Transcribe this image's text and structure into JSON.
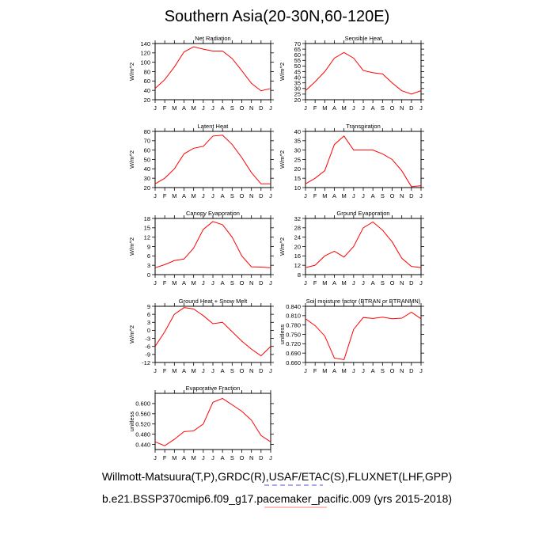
{
  "page": {
    "title": "Southern Asia(20-30N,60-120E)",
    "footer_line1": "Willmott-Matsuura(T,P),GRDC(R),USAF/ETAC(S),FLUXNET(LHF,GPP)",
    "footer_line2": "b.e21.BSSP370cmip6.f09_g17.pacemaker_pacific.009 (yrs 2015-2018)"
  },
  "chart_data": [
    {
      "type": "line",
      "title": "Net Radiation",
      "ylabel": "W/m^2",
      "categories": [
        "J",
        "F",
        "M",
        "A",
        "M",
        "J",
        "J",
        "A",
        "S",
        "O",
        "N",
        "D",
        "J"
      ],
      "ylim": [
        20,
        140
      ],
      "yticks": [
        20,
        40,
        60,
        80,
        100,
        120,
        140
      ],
      "series": [
        {
          "color": "#ff0000",
          "values": [
            44,
            63,
            90,
            122,
            133,
            128,
            124,
            124,
            108,
            82,
            55,
            39,
            44
          ]
        }
      ]
    },
    {
      "type": "line",
      "title": "Sensible Heat",
      "ylabel": "W/m^2",
      "categories": [
        "J",
        "F",
        "M",
        "A",
        "M",
        "J",
        "J",
        "A",
        "S",
        "O",
        "N",
        "D",
        "J"
      ],
      "ylim": [
        20,
        70
      ],
      "yticks": [
        20,
        25,
        30,
        35,
        40,
        45,
        50,
        55,
        60,
        65,
        70
      ],
      "series": [
        {
          "color": "#ff0000",
          "values": [
            28,
            36,
            45,
            57,
            62,
            57,
            46,
            44,
            43,
            35,
            28,
            25,
            28
          ]
        }
      ]
    },
    {
      "type": "line",
      "title": "Latent Heat",
      "ylabel": "W/m^2",
      "categories": [
        "J",
        "F",
        "M",
        "A",
        "M",
        "J",
        "J",
        "A",
        "S",
        "O",
        "N",
        "D",
        "J"
      ],
      "ylim": [
        20,
        80
      ],
      "yticks": [
        20,
        30,
        40,
        50,
        60,
        70,
        80
      ],
      "series": [
        {
          "color": "#ff0000",
          "values": [
            24,
            30,
            40,
            56,
            62,
            64,
            75,
            76,
            66,
            52,
            36,
            24,
            24
          ]
        }
      ]
    },
    {
      "type": "line",
      "title": "Transpiration",
      "ylabel": "W/m^2",
      "categories": [
        "J",
        "F",
        "M",
        "A",
        "M",
        "J",
        "J",
        "A",
        "S",
        "O",
        "N",
        "D",
        "J"
      ],
      "ylim": [
        10,
        40
      ],
      "yticks": [
        10,
        15,
        20,
        25,
        30,
        35,
        40
      ],
      "series": [
        {
          "color": "#ff0000",
          "values": [
            12,
            15,
            19,
            33,
            37.5,
            30,
            30,
            30,
            28,
            25,
            19,
            10.5,
            11
          ]
        }
      ]
    },
    {
      "type": "line",
      "title": "Canopy Evaporation",
      "ylabel": "W/m^2",
      "categories": [
        "J",
        "F",
        "M",
        "A",
        "M",
        "J",
        "J",
        "A",
        "S",
        "O",
        "N",
        "D",
        "J"
      ],
      "ylim": [
        0,
        18
      ],
      "yticks": [
        0,
        3,
        6,
        9,
        12,
        15,
        18
      ],
      "series": [
        {
          "color": "#ff0000",
          "values": [
            2.2,
            3.2,
            4.5,
            5,
            8.5,
            14.5,
            17,
            16,
            12,
            6,
            2.5,
            2.4,
            2.2
          ]
        }
      ]
    },
    {
      "type": "line",
      "title": "Ground Evaporation",
      "ylabel": "W/m^2",
      "categories": [
        "J",
        "F",
        "M",
        "A",
        "M",
        "J",
        "J",
        "A",
        "S",
        "O",
        "N",
        "D",
        "J"
      ],
      "ylim": [
        8,
        32
      ],
      "yticks": [
        8,
        12,
        16,
        20,
        24,
        28,
        32
      ],
      "series": [
        {
          "color": "#ff0000",
          "values": [
            11,
            12,
            16,
            18,
            15.5,
            20,
            28,
            30.5,
            27,
            22,
            15,
            11.5,
            11
          ]
        }
      ]
    },
    {
      "type": "line",
      "title": "Ground Heat + Snow Melt",
      "ylabel": "W/m^2",
      "categories": [
        "J",
        "F",
        "M",
        "A",
        "M",
        "J",
        "J",
        "A",
        "S",
        "O",
        "N",
        "D",
        "J"
      ],
      "ylim": [
        -12,
        9
      ],
      "yticks": [
        -12,
        -9,
        -6,
        -3,
        0,
        3,
        6,
        9
      ],
      "series": [
        {
          "color": "#ff0000",
          "values": [
            -6,
            -0.5,
            6,
            8.5,
            8,
            5.5,
            2.5,
            3,
            -0.5,
            -4,
            -7,
            -9.5,
            -6
          ]
        }
      ]
    },
    {
      "type": "line",
      "title": "Soil moisture factor (BTRAN or BTRANMN)",
      "ylabel": "unitless",
      "categories": [
        "J",
        "F",
        "M",
        "A",
        "M",
        "J",
        "J",
        "A",
        "S",
        "O",
        "N",
        "D",
        "J"
      ],
      "ylim": [
        0.66,
        0.84
      ],
      "yticks": [
        0.66,
        0.69,
        0.72,
        0.75,
        0.78,
        0.81,
        0.84
      ],
      "ytick_labels": [
        "0.660",
        "0.690",
        "0.720",
        "0.750",
        "0.780",
        "0.810",
        "0.840"
      ],
      "series": [
        {
          "color": "#ff0000",
          "values": [
            0.8,
            0.778,
            0.745,
            0.674,
            0.669,
            0.766,
            0.804,
            0.801,
            0.805,
            0.8,
            0.802,
            0.821,
            0.8
          ]
        }
      ]
    },
    {
      "type": "line",
      "title": "Evaporative Fraction",
      "ylabel": "unitless",
      "categories": [
        "J",
        "F",
        "M",
        "A",
        "M",
        "J",
        "J",
        "A",
        "S",
        "O",
        "N",
        "D",
        "J"
      ],
      "ylim": [
        0.42,
        0.64
      ],
      "yticks": [
        0.44,
        0.48,
        0.52,
        0.56,
        0.6
      ],
      "ytick_labels": [
        "0.440",
        "0.480",
        "0.520",
        "0.560",
        "0.600"
      ],
      "series": [
        {
          "color": "#ff0000",
          "values": [
            0.45,
            0.435,
            0.46,
            0.49,
            0.493,
            0.52,
            0.605,
            0.62,
            0.595,
            0.57,
            0.535,
            0.475,
            0.45
          ]
        }
      ]
    }
  ]
}
